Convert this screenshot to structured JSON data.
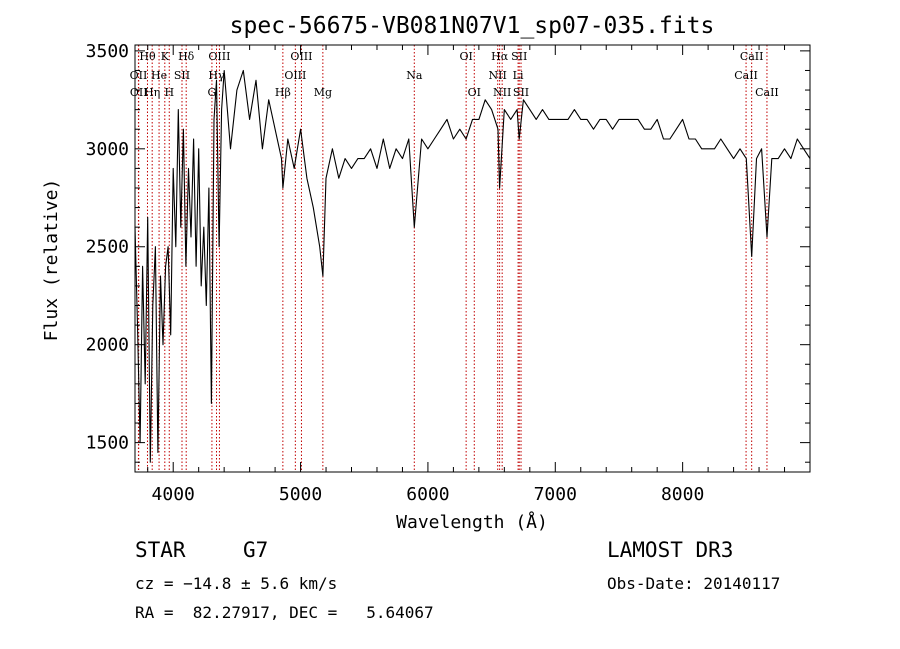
{
  "chart_data": {
    "type": "line",
    "title": "spec-56675-VB081N07V1_sp07-035.fits",
    "xlabel": "Wavelength (Å)",
    "ylabel": "Flux (relative)",
    "xlim": [
      3700,
      9000
    ],
    "ylim": [
      1350,
      3530
    ],
    "xticks": [
      4000,
      5000,
      6000,
      7000,
      8000
    ],
    "yticks": [
      1500,
      2000,
      2500,
      3000,
      3500
    ],
    "line_color": "#000000",
    "marker_color": "#c00000",
    "series": [
      {
        "x": [
          3700,
          3720,
          3740,
          3760,
          3780,
          3800,
          3820,
          3840,
          3860,
          3880,
          3900,
          3920,
          3940,
          3960,
          3980,
          4000,
          4020,
          4040,
          4060,
          4080,
          4100,
          4120,
          4140,
          4160,
          4180,
          4200,
          4220,
          4240,
          4260,
          4280,
          4300,
          4320,
          4340,
          4360,
          4380,
          4400,
          4450,
          4500,
          4550,
          4600,
          4650,
          4700,
          4750,
          4800,
          4850,
          4861,
          4900,
          4950,
          5000,
          5050,
          5100,
          5150,
          5175,
          5200,
          5250,
          5300,
          5350,
          5400,
          5450,
          5500,
          5550,
          5600,
          5650,
          5700,
          5750,
          5800,
          5850,
          5893,
          5950,
          6000,
          6050,
          6100,
          6150,
          6200,
          6250,
          6300,
          6350,
          6400,
          6450,
          6500,
          6550,
          6563,
          6600,
          6650,
          6700,
          6717,
          6750,
          6800,
          6850,
          6900,
          6950,
          7000,
          7050,
          7100,
          7150,
          7200,
          7250,
          7300,
          7350,
          7400,
          7450,
          7500,
          7550,
          7600,
          7650,
          7700,
          7750,
          7800,
          7850,
          7900,
          7950,
          8000,
          8050,
          8100,
          8150,
          8200,
          8250,
          8300,
          8350,
          8400,
          8450,
          8500,
          8542,
          8580,
          8620,
          8662,
          8700,
          8750,
          8800,
          8850,
          8900,
          8950,
          9000
        ],
        "y": [
          2600,
          2100,
          1500,
          2400,
          1800,
          2650,
          1400,
          2200,
          2500,
          1450,
          2350,
          2000,
          2400,
          2500,
          2050,
          2900,
          2500,
          3200,
          2600,
          3100,
          2400,
          2900,
          2550,
          3050,
          2400,
          3000,
          2300,
          2600,
          2200,
          2800,
          1700,
          3150,
          3350,
          2500,
          3200,
          3400,
          3000,
          3300,
          3400,
          3150,
          3350,
          3000,
          3250,
          3100,
          2950,
          2800,
          3050,
          2900,
          3100,
          2850,
          2700,
          2500,
          2350,
          2850,
          3000,
          2850,
          2950,
          2900,
          2950,
          2950,
          3000,
          2900,
          3050,
          2900,
          3000,
          2950,
          3050,
          2600,
          3050,
          3000,
          3050,
          3100,
          3150,
          3050,
          3100,
          3050,
          3150,
          3150,
          3250,
          3200,
          3100,
          2800,
          3200,
          3150,
          3200,
          3050,
          3250,
          3200,
          3150,
          3200,
          3150,
          3150,
          3150,
          3150,
          3200,
          3150,
          3150,
          3100,
          3150,
          3150,
          3100,
          3150,
          3150,
          3150,
          3150,
          3100,
          3100,
          3150,
          3050,
          3050,
          3100,
          3150,
          3050,
          3050,
          3000,
          3000,
          3000,
          3050,
          3000,
          2950,
          3000,
          2950,
          2450,
          2950,
          3000,
          2550,
          2950,
          2950,
          3000,
          2950,
          3050,
          3000,
          2950
        ]
      }
    ],
    "spectral_lines": [
      {
        "label": "Hθ",
        "x": 3798,
        "row": 0
      },
      {
        "label": "OII",
        "x": 3727,
        "row": 1
      },
      {
        "label": "OII",
        "x": 3729,
        "row": 2
      },
      {
        "label": "Hη",
        "x": 3835,
        "row": 2
      },
      {
        "label": "K",
        "x": 3934,
        "row": 0
      },
      {
        "label": "He",
        "x": 3889,
        "row": 1
      },
      {
        "label": "H",
        "x": 3969,
        "row": 2
      },
      {
        "label": "Hδ",
        "x": 4102,
        "row": 0
      },
      {
        "label": "SII",
        "x": 4069,
        "row": 1
      },
      {
        "label": "OIII",
        "x": 4363,
        "row": 0
      },
      {
        "label": "Hγ",
        "x": 4340,
        "row": 1
      },
      {
        "label": "G",
        "x": 4304,
        "row": 2
      },
      {
        "label": "OIII",
        "x": 5007,
        "row": 0
      },
      {
        "label": "OIII",
        "x": 4959,
        "row": 1
      },
      {
        "label": "Hβ",
        "x": 4861,
        "row": 2
      },
      {
        "label": "Mg",
        "x": 5175,
        "row": 2
      },
      {
        "label": "Na",
        "x": 5893,
        "row": 1
      },
      {
        "label": "OI",
        "x": 6300,
        "row": 0
      },
      {
        "label": "OI",
        "x": 6364,
        "row": 2
      },
      {
        "label": "Hα",
        "x": 6563,
        "row": 0
      },
      {
        "label": "SII",
        "x": 6717,
        "row": 0
      },
      {
        "label": "NII",
        "x": 6548,
        "row": 1
      },
      {
        "label": "Li",
        "x": 6708,
        "row": 1
      },
      {
        "label": "NII",
        "x": 6583,
        "row": 2
      },
      {
        "label": "SII",
        "x": 6731,
        "row": 2
      },
      {
        "label": "CaII",
        "x": 8542,
        "row": 0
      },
      {
        "label": "CaII",
        "x": 8498,
        "row": 1
      },
      {
        "label": "CaII",
        "x": 8662,
        "row": 2
      }
    ]
  },
  "info": {
    "class_label": "STAR",
    "subclass": "G7",
    "survey": "LAMOST DR3",
    "redshift": "cz = −14.8 ± 5.6 km/s",
    "obs_date": "Obs-Date: 20140117",
    "coords": "RA =  82.27917, DEC =   5.64067"
  }
}
